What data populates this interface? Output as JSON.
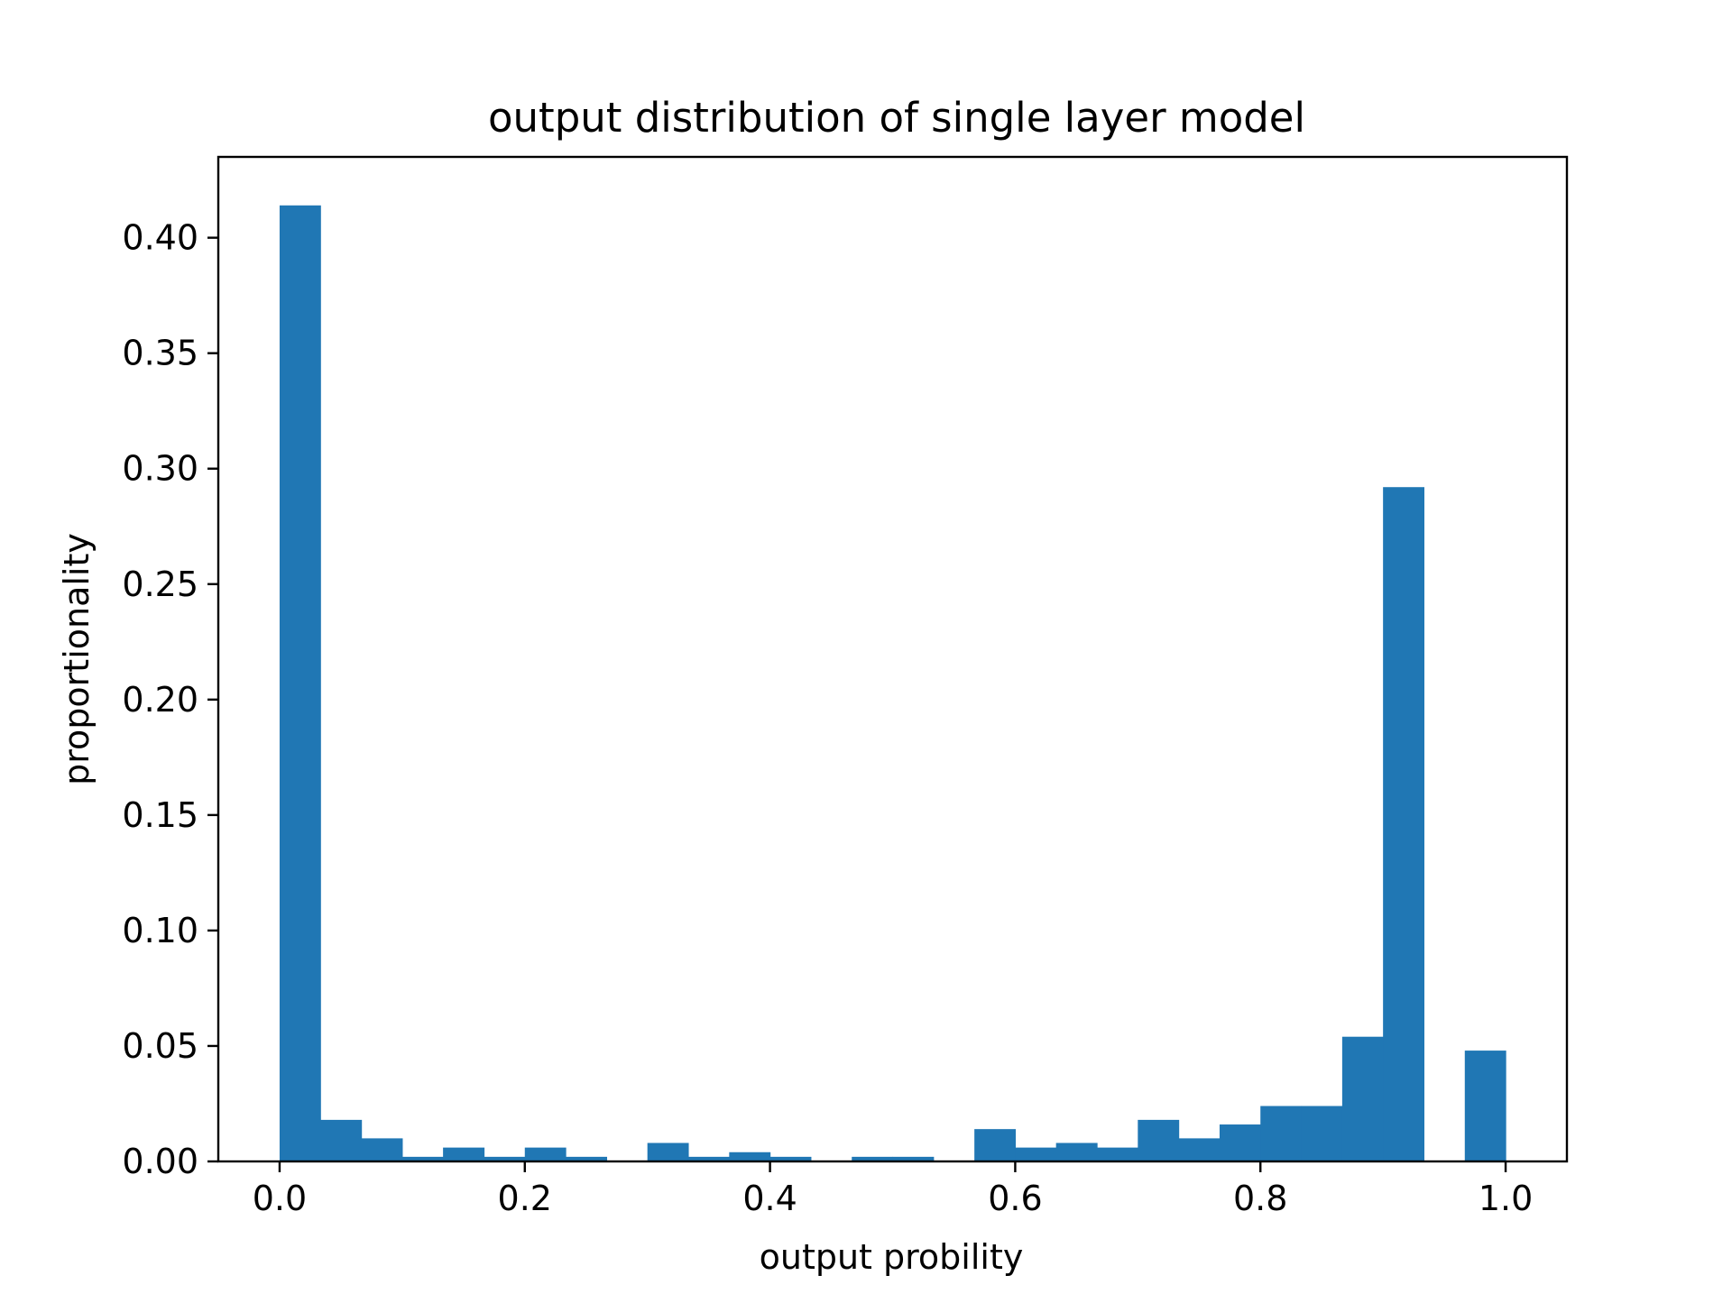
{
  "chart_data": {
    "type": "bar",
    "title": "output distribution of single layer model",
    "xlabel": "output probility",
    "ylabel": "proportionality",
    "xlim": [
      -0.05,
      1.05
    ],
    "ylim": [
      0,
      0.435
    ],
    "bin_width": 0.0333,
    "x_ticks": [
      "0.0",
      "0.2",
      "0.4",
      "0.6",
      "0.8",
      "1.0"
    ],
    "y_ticks": [
      "0.00",
      "0.05",
      "0.10",
      "0.15",
      "0.20",
      "0.25",
      "0.30",
      "0.35",
      "0.40"
    ],
    "bins": [
      {
        "x0": 0.0,
        "x1": 0.0333,
        "value": 0.414
      },
      {
        "x0": 0.0333,
        "x1": 0.0667,
        "value": 0.018
      },
      {
        "x0": 0.0667,
        "x1": 0.1,
        "value": 0.01
      },
      {
        "x0": 0.1,
        "x1": 0.1333,
        "value": 0.002
      },
      {
        "x0": 0.1333,
        "x1": 0.1667,
        "value": 0.006
      },
      {
        "x0": 0.1667,
        "x1": 0.2,
        "value": 0.002
      },
      {
        "x0": 0.2,
        "x1": 0.2333,
        "value": 0.006
      },
      {
        "x0": 0.2333,
        "x1": 0.2667,
        "value": 0.002
      },
      {
        "x0": 0.2667,
        "x1": 0.3,
        "value": 0.0
      },
      {
        "x0": 0.3,
        "x1": 0.3333,
        "value": 0.008
      },
      {
        "x0": 0.3333,
        "x1": 0.3667,
        "value": 0.002
      },
      {
        "x0": 0.3667,
        "x1": 0.4,
        "value": 0.004
      },
      {
        "x0": 0.4,
        "x1": 0.4333,
        "value": 0.002
      },
      {
        "x0": 0.4333,
        "x1": 0.4667,
        "value": 0.0
      },
      {
        "x0": 0.4667,
        "x1": 0.5,
        "value": 0.002
      },
      {
        "x0": 0.5,
        "x1": 0.5333,
        "value": 0.002
      },
      {
        "x0": 0.5333,
        "x1": 0.5667,
        "value": 0.0
      },
      {
        "x0": 0.5667,
        "x1": 0.6,
        "value": 0.014
      },
      {
        "x0": 0.6,
        "x1": 0.6333,
        "value": 0.006
      },
      {
        "x0": 0.6333,
        "x1": 0.6667,
        "value": 0.008
      },
      {
        "x0": 0.6667,
        "x1": 0.7,
        "value": 0.006
      },
      {
        "x0": 0.7,
        "x1": 0.7333,
        "value": 0.018
      },
      {
        "x0": 0.7333,
        "x1": 0.7667,
        "value": 0.01
      },
      {
        "x0": 0.7667,
        "x1": 0.8,
        "value": 0.016
      },
      {
        "x0": 0.8,
        "x1": 0.8333,
        "value": 0.024
      },
      {
        "x0": 0.8333,
        "x1": 0.8667,
        "value": 0.024
      },
      {
        "x0": 0.8667,
        "x1": 0.9,
        "value": 0.054
      },
      {
        "x0": 0.9,
        "x1": 0.9333,
        "value": 0.292
      },
      {
        "x0": 0.9333,
        "x1": 0.9667,
        "value": 0.0
      },
      {
        "x0": 0.9667,
        "x1": 1.0,
        "value": 0.048
      }
    ],
    "bar_color": "#2077b4",
    "grid": false,
    "legend": "none"
  }
}
